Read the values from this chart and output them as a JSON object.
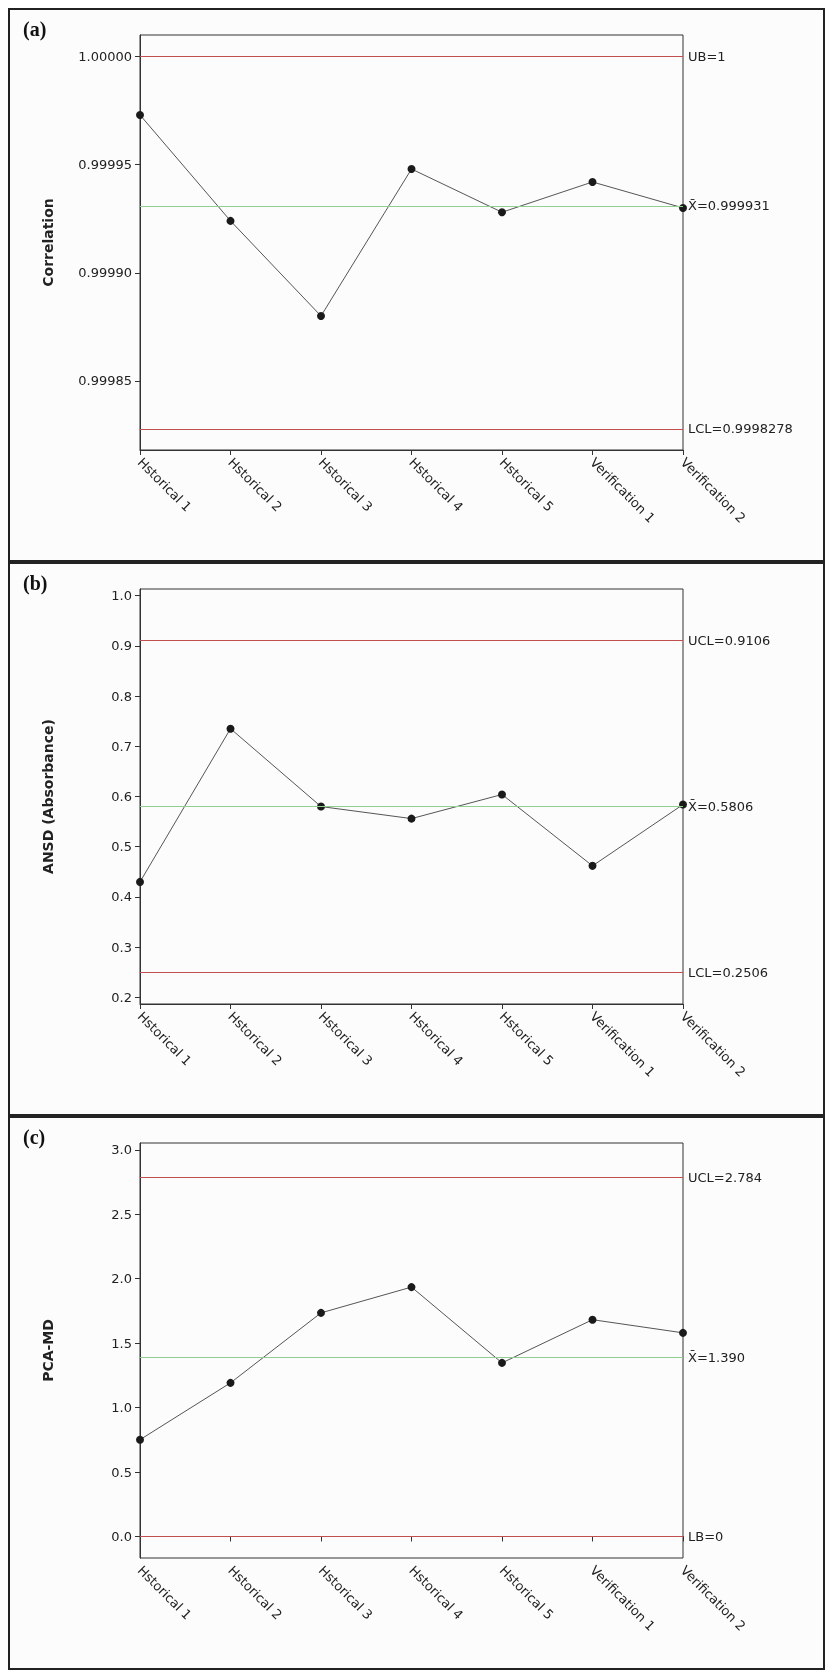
{
  "chart_data": [
    {
      "type": "line",
      "title": "(a)",
      "ylabel": "Correlation",
      "categories": [
        "Hstorical 1",
        "Hstorical 2",
        "Hstorical 3",
        "Hstorical 4",
        "Hstorical 5",
        "Verification 1",
        "Verification 2"
      ],
      "series": [
        {
          "color": "#1a1a1a",
          "values": [
            0.999973,
            0.999924,
            0.99988,
            0.999948,
            0.999928,
            0.999942,
            0.99993
          ]
        }
      ],
      "ylim": [
        0.999818,
        1.00001
      ],
      "yticks": [
        {
          "value": 0.99985,
          "label": "0.99985"
        },
        {
          "value": 0.9999,
          "label": "0.99990"
        },
        {
          "value": 0.99995,
          "label": "0.99995"
        },
        {
          "value": 1,
          "label": "1.00000"
        }
      ],
      "ref_lines": [
        {
          "axis": "y",
          "value": 1,
          "label": "UB=1",
          "color": "#c0504d"
        },
        {
          "axis": "y",
          "value": 0.999931,
          "label": "X̄=0.999931",
          "color": "#8fcf8f"
        },
        {
          "axis": "y",
          "value": 0.9998278,
          "label": "LCL=0.9998278",
          "color": "#c0504d"
        }
      ],
      "marker": "circle",
      "line_style": "solid"
    },
    {
      "type": "line",
      "title": "(b)",
      "ylabel": "ANSD (Absorbance)",
      "categories": [
        "Hstorical 1",
        "Hstorical 2",
        "Hstorical 3",
        "Hstorical 4",
        "Hstorical 5",
        "Verification 1",
        "Verification 2"
      ],
      "series": [
        {
          "color": "#1a1a1a",
          "values": [
            0.43,
            0.735,
            0.58,
            0.556,
            0.604,
            0.462,
            0.584
          ]
        }
      ],
      "ylim": [
        0.187,
        1.013
      ],
      "yticks": [
        0.2,
        0.3,
        0.4,
        0.5,
        0.6,
        0.7,
        0.8,
        0.9,
        {
          "value": 1,
          "label": "1.0"
        }
      ],
      "ref_lines": [
        {
          "axis": "y",
          "value": 0.9106,
          "label": "UCL=0.9106",
          "color": "#c0504d"
        },
        {
          "axis": "y",
          "value": 0.5806,
          "label": "X̄=0.5806",
          "color": "#8fcf8f"
        },
        {
          "axis": "y",
          "value": 0.2506,
          "label": "LCL=0.2506",
          "color": "#c0504d"
        }
      ],
      "marker": "circle",
      "line_style": "solid"
    },
    {
      "type": "line",
      "title": "(c)",
      "ylabel": "PCA-MD",
      "categories": [
        "Hstorical 1",
        "Hstorical 2",
        "Hstorical 3",
        "Hstorical 4",
        "Hstorical 5",
        "Verification 1",
        "Verification 2"
      ],
      "series": [
        {
          "color": "#1a1a1a",
          "values": [
            0.751,
            1.192,
            1.735,
            1.935,
            1.347,
            1.682,
            1.58
          ]
        }
      ],
      "ylim": [
        -0.167,
        3.053
      ],
      "yticks": [
        {
          "value": 0,
          "label": "0.0"
        },
        0.5,
        {
          "value": 1,
          "label": "1.0"
        },
        1.5,
        {
          "value": 2,
          "label": "2.0"
        },
        2.5,
        {
          "value": 3,
          "label": "3.0"
        }
      ],
      "ref_lines": [
        {
          "axis": "y",
          "value": 2.784,
          "label": "UCL=2.784",
          "color": "#c0504d"
        },
        {
          "axis": "y",
          "value": 1.39,
          "label": "X̄=1.390",
          "color": "#8fcf8f"
        },
        {
          "axis": "y",
          "value": 0,
          "label": "LB=0",
          "color": "#c0504d"
        }
      ],
      "marker": "circle",
      "line_style": "solid"
    }
  ]
}
